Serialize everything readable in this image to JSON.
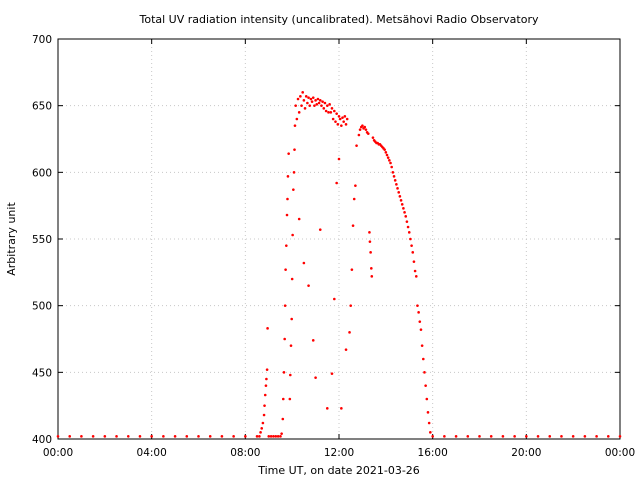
{
  "chart_data": {
    "type": "scatter",
    "title": "Total UV radiation intensity (uncalibrated). Metsähovi Radio Observatory",
    "xlabel": "Time UT, on date 2021-03-26",
    "ylabel": "Arbitrary unit",
    "xlim": [
      "00:00",
      "24:00"
    ],
    "ylim": [
      400,
      700
    ],
    "x_ticks": [
      "00:00",
      "04:00",
      "08:00",
      "12:00",
      "16:00",
      "20:00",
      "00:00"
    ],
    "y_ticks": [
      400,
      450,
      500,
      550,
      600,
      650,
      700
    ],
    "grid": true,
    "legend": "none",
    "marker_color": "#ff0000",
    "x_units": "hours UT",
    "series": [
      {
        "points": [
          [
            0.0,
            402
          ],
          [
            0.5,
            402
          ],
          [
            1.0,
            402
          ],
          [
            1.5,
            402
          ],
          [
            2.0,
            402
          ],
          [
            2.5,
            402
          ],
          [
            3.0,
            402
          ],
          [
            3.5,
            402
          ],
          [
            4.0,
            402
          ],
          [
            4.5,
            402
          ],
          [
            5.0,
            402
          ],
          [
            5.5,
            402
          ],
          [
            6.0,
            402
          ],
          [
            6.5,
            402
          ],
          [
            7.0,
            402
          ],
          [
            7.5,
            402
          ],
          [
            8.0,
            402
          ],
          [
            8.5,
            402
          ],
          [
            8.6,
            402
          ],
          [
            8.65,
            405
          ],
          [
            8.7,
            408
          ],
          [
            8.75,
            412
          ],
          [
            8.8,
            418
          ],
          [
            8.82,
            425
          ],
          [
            8.85,
            433
          ],
          [
            8.88,
            440
          ],
          [
            8.9,
            445
          ],
          [
            8.93,
            452
          ],
          [
            8.95,
            483
          ],
          [
            9.0,
            402
          ],
          [
            9.1,
            402
          ],
          [
            9.2,
            402
          ],
          [
            9.3,
            402
          ],
          [
            9.4,
            402
          ],
          [
            9.5,
            402
          ],
          [
            9.55,
            404
          ],
          [
            9.6,
            415
          ],
          [
            9.62,
            430
          ],
          [
            9.65,
            450
          ],
          [
            9.68,
            475
          ],
          [
            9.7,
            500
          ],
          [
            9.72,
            527
          ],
          [
            9.75,
            545
          ],
          [
            9.78,
            568
          ],
          [
            9.8,
            580
          ],
          [
            9.82,
            597
          ],
          [
            9.85,
            614
          ],
          [
            9.9,
            430
          ],
          [
            9.92,
            448
          ],
          [
            9.95,
            470
          ],
          [
            9.98,
            490
          ],
          [
            10.0,
            520
          ],
          [
            10.02,
            553
          ],
          [
            10.05,
            587
          ],
          [
            10.08,
            600
          ],
          [
            10.1,
            617
          ],
          [
            10.12,
            635
          ],
          [
            10.15,
            650
          ],
          [
            10.2,
            640
          ],
          [
            10.25,
            655
          ],
          [
            10.3,
            645
          ],
          [
            10.35,
            657
          ],
          [
            10.4,
            650
          ],
          [
            10.45,
            660
          ],
          [
            10.5,
            654
          ],
          [
            10.55,
            648
          ],
          [
            10.6,
            657
          ],
          [
            10.65,
            652
          ],
          [
            10.7,
            656
          ],
          [
            10.75,
            650
          ],
          [
            10.8,
            655
          ],
          [
            10.85,
            653
          ],
          [
            10.9,
            656
          ],
          [
            10.95,
            650
          ],
          [
            11.0,
            654
          ],
          [
            11.05,
            651
          ],
          [
            11.1,
            655
          ],
          [
            11.15,
            652
          ],
          [
            11.2,
            654
          ],
          [
            11.25,
            650
          ],
          [
            11.3,
            653
          ],
          [
            11.35,
            648
          ],
          [
            11.4,
            652
          ],
          [
            11.45,
            646
          ],
          [
            11.5,
            650
          ],
          [
            11.55,
            645
          ],
          [
            11.6,
            651
          ],
          [
            11.65,
            645
          ],
          [
            11.7,
            648
          ],
          [
            11.75,
            640
          ],
          [
            11.8,
            646
          ],
          [
            11.85,
            638
          ],
          [
            11.9,
            644
          ],
          [
            11.95,
            636
          ],
          [
            12.0,
            642
          ],
          [
            12.05,
            640
          ],
          [
            12.1,
            635
          ],
          [
            12.15,
            641
          ],
          [
            12.2,
            638
          ],
          [
            12.25,
            642
          ],
          [
            12.3,
            636
          ],
          [
            12.35,
            640
          ],
          [
            10.3,
            565
          ],
          [
            10.5,
            532
          ],
          [
            10.7,
            515
          ],
          [
            10.9,
            474
          ],
          [
            11.0,
            446
          ],
          [
            11.2,
            557
          ],
          [
            11.5,
            423
          ],
          [
            11.7,
            449
          ],
          [
            11.8,
            505
          ],
          [
            11.9,
            592
          ],
          [
            12.0,
            610
          ],
          [
            12.1,
            423
          ],
          [
            12.3,
            467
          ],
          [
            12.45,
            480
          ],
          [
            12.5,
            500
          ],
          [
            12.55,
            527
          ],
          [
            12.6,
            560
          ],
          [
            12.65,
            580
          ],
          [
            12.7,
            590
          ],
          [
            12.75,
            620
          ],
          [
            12.85,
            628
          ],
          [
            12.9,
            632
          ],
          [
            12.95,
            634
          ],
          [
            13.0,
            635
          ],
          [
            13.05,
            633
          ],
          [
            13.1,
            634
          ],
          [
            13.15,
            632
          ],
          [
            13.2,
            630
          ],
          [
            13.25,
            629
          ],
          [
            13.3,
            555
          ],
          [
            13.32,
            548
          ],
          [
            13.35,
            540
          ],
          [
            13.38,
            528
          ],
          [
            13.4,
            522
          ],
          [
            13.45,
            626
          ],
          [
            13.5,
            624
          ],
          [
            13.55,
            623
          ],
          [
            13.6,
            622
          ],
          [
            13.65,
            622
          ],
          [
            13.7,
            621
          ],
          [
            13.75,
            621
          ],
          [
            13.8,
            620
          ],
          [
            13.85,
            619
          ],
          [
            13.9,
            618
          ],
          [
            13.95,
            617
          ],
          [
            14.0,
            615
          ],
          [
            14.05,
            613
          ],
          [
            14.1,
            611
          ],
          [
            14.15,
            609
          ],
          [
            14.2,
            607
          ],
          [
            14.25,
            604
          ],
          [
            14.3,
            600
          ],
          [
            14.35,
            597
          ],
          [
            14.4,
            594
          ],
          [
            14.45,
            591
          ],
          [
            14.5,
            588
          ],
          [
            14.55,
            585
          ],
          [
            14.6,
            582
          ],
          [
            14.65,
            579
          ],
          [
            14.7,
            576
          ],
          [
            14.75,
            573
          ],
          [
            14.8,
            570
          ],
          [
            14.85,
            567
          ],
          [
            14.9,
            563
          ],
          [
            14.95,
            559
          ],
          [
            15.0,
            555
          ],
          [
            15.05,
            550
          ],
          [
            15.1,
            545
          ],
          [
            15.15,
            540
          ],
          [
            15.2,
            533
          ],
          [
            15.25,
            526
          ],
          [
            15.3,
            522
          ],
          [
            15.35,
            500
          ],
          [
            15.4,
            495
          ],
          [
            15.45,
            488
          ],
          [
            15.5,
            482
          ],
          [
            15.55,
            470
          ],
          [
            15.6,
            460
          ],
          [
            15.65,
            450
          ],
          [
            15.7,
            440
          ],
          [
            15.75,
            430
          ],
          [
            15.8,
            420
          ],
          [
            15.85,
            412
          ],
          [
            15.9,
            405
          ],
          [
            16.0,
            402
          ],
          [
            16.5,
            402
          ],
          [
            17.0,
            402
          ],
          [
            17.5,
            402
          ],
          [
            18.0,
            402
          ],
          [
            18.5,
            402
          ],
          [
            19.0,
            402
          ],
          [
            19.5,
            402
          ],
          [
            20.0,
            402
          ],
          [
            20.5,
            402
          ],
          [
            21.0,
            402
          ],
          [
            21.5,
            402
          ],
          [
            22.0,
            402
          ],
          [
            22.5,
            402
          ],
          [
            23.0,
            402
          ],
          [
            23.5,
            402
          ],
          [
            24.0,
            402
          ]
        ]
      }
    ]
  }
}
